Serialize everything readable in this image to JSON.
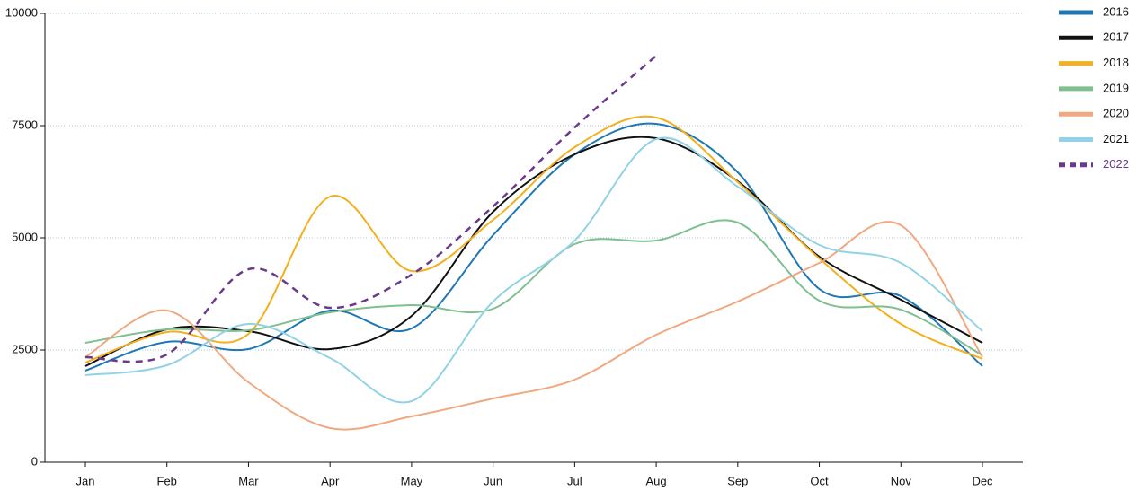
{
  "chart_data": {
    "type": "line",
    "categories": [
      "Jan",
      "Feb",
      "Mar",
      "Apr",
      "May",
      "Jun",
      "Jul",
      "Aug",
      "Sep",
      "Oct",
      "Nov",
      "Dec"
    ],
    "series": [
      {
        "name": "2016",
        "color": "#1f77b4",
        "values": [
          2040,
          2680,
          2520,
          3380,
          2980,
          5060,
          6860,
          7540,
          6460,
          3860,
          3700,
          2140
        ]
      },
      {
        "name": "2017",
        "color": "#111111",
        "values": [
          2140,
          2960,
          2920,
          2520,
          3260,
          5580,
          6860,
          7220,
          6260,
          4580,
          3620,
          2660
        ]
      },
      {
        "name": "2018",
        "color": "#f2b01e",
        "values": [
          2220,
          2900,
          2860,
          5920,
          4260,
          5400,
          7020,
          7680,
          6240,
          4540,
          3080,
          2300
        ]
      },
      {
        "name": "2019",
        "color": "#7fbf90",
        "values": [
          2660,
          2960,
          2940,
          3340,
          3500,
          3420,
          4860,
          4940,
          5340,
          3600,
          3400,
          2380
        ]
      },
      {
        "name": "2020",
        "color": "#f0a880",
        "values": [
          2340,
          3380,
          1780,
          760,
          1020,
          1420,
          1840,
          2840,
          3580,
          4440,
          5280,
          2340
        ]
      },
      {
        "name": "2021",
        "color": "#92d2e6",
        "values": [
          1940,
          2160,
          3080,
          2320,
          1360,
          3580,
          4940,
          7200,
          6140,
          4840,
          4440,
          2920
        ]
      },
      {
        "name": "2022",
        "color": "#6b3a8c",
        "dashed": true,
        "values": [
          2340,
          2400,
          4300,
          3440,
          4180,
          5700,
          7460,
          9060,
          null,
          null,
          null,
          null
        ]
      }
    ],
    "ylim": [
      0,
      10000
    ],
    "yticks": [
      0,
      2500,
      5000,
      7500,
      10000
    ],
    "grid": true,
    "legend": "right"
  }
}
